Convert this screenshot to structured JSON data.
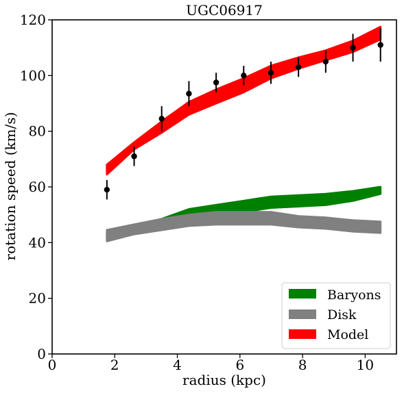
{
  "chart_data": {
    "type": "line",
    "title": "UGC06917",
    "xlabel": "radius (kpc)",
    "ylabel": "rotation speed (km/s)",
    "xlim": [
      0,
      11
    ],
    "ylim": [
      0,
      120
    ],
    "xticks": [
      0,
      2,
      4,
      6,
      8,
      10
    ],
    "yticks": [
      0,
      20,
      40,
      60,
      80,
      100,
      120
    ],
    "grid": false,
    "legend_position": "lower-right",
    "x": [
      1.75,
      2.62,
      3.5,
      4.37,
      5.24,
      6.12,
      6.99,
      7.87,
      8.74,
      9.61,
      10.49
    ],
    "bands": [
      {
        "name": "Baryons",
        "color": "#008000",
        "lower": [
          41.5,
          43.5,
          45.5,
          48.5,
          50.0,
          51.0,
          52.5,
          53.0,
          53.5,
          55.0,
          57.5
        ],
        "upper": [
          43.5,
          46.0,
          48.5,
          52.0,
          53.5,
          55.0,
          56.5,
          57.0,
          57.5,
          58.5,
          60.0
        ]
      },
      {
        "name": "Disk",
        "color": "#808080",
        "lower": [
          40.5,
          43.0,
          44.5,
          46.0,
          46.5,
          46.5,
          46.5,
          45.5,
          45.0,
          44.0,
          43.5
        ],
        "upper": [
          44.5,
          46.5,
          48.5,
          50.0,
          51.0,
          51.0,
          51.0,
          49.5,
          49.0,
          48.0,
          47.5
        ]
      },
      {
        "name": "Model",
        "color": "#ff0000",
        "lower": [
          64.5,
          73.5,
          79.5,
          86.0,
          90.0,
          94.0,
          99.0,
          102.5,
          105.5,
          108.5,
          113.0
        ],
        "upper": [
          68.0,
          76.0,
          83.5,
          90.5,
          95.0,
          99.0,
          103.5,
          106.5,
          109.0,
          112.5,
          117.5
        ]
      }
    ],
    "observed": {
      "color": "#000000",
      "x": [
        1.75,
        2.62,
        3.5,
        4.37,
        5.24,
        6.12,
        6.99,
        7.87,
        8.74,
        9.61,
        10.49
      ],
      "y": [
        59,
        71,
        84.5,
        93.5,
        97.5,
        100,
        101,
        103,
        105,
        110,
        111
      ],
      "err": [
        3.5,
        3.5,
        4.5,
        4.5,
        3.5,
        3.5,
        4.0,
        3.5,
        4.0,
        5.0,
        6.0
      ]
    }
  }
}
